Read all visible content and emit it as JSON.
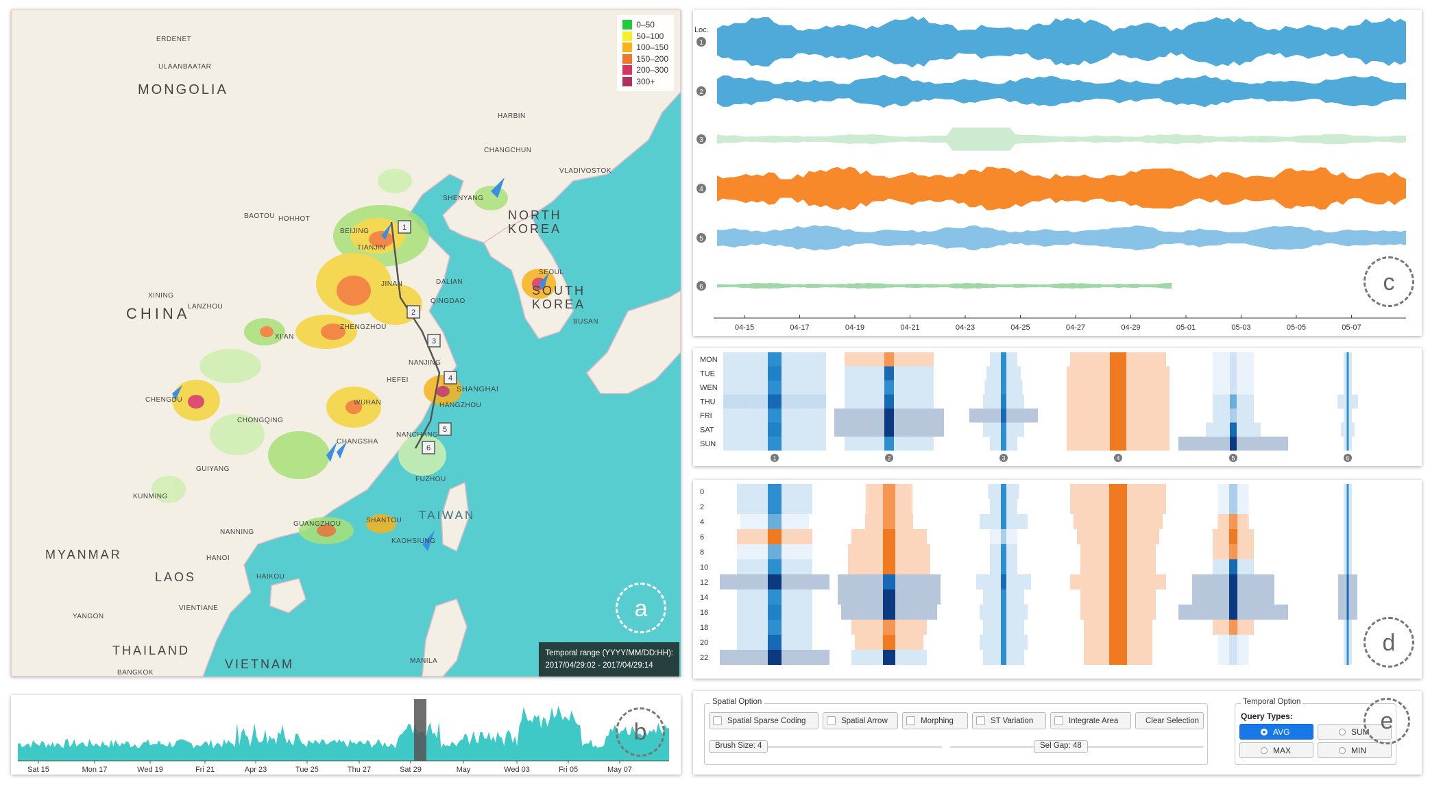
{
  "map": {
    "legend": [
      {
        "label": "0–50",
        "color": "#1fcc3a"
      },
      {
        "label": "50–100",
        "color": "#f5f029"
      },
      {
        "label": "100–150",
        "color": "#f7b21c"
      },
      {
        "label": "150–200",
        "color": "#f4762b"
      },
      {
        "label": "200–300",
        "color": "#d9345c"
      },
      {
        "label": "300+",
        "color": "#b03060"
      }
    ],
    "countries": [
      "MONGOLIA",
      "CHINA",
      "NORTH KOREA",
      "SOUTH KOREA",
      "MYANMAR",
      "LAOS",
      "THAILAND",
      "VIETNAM",
      "TAIWAN"
    ],
    "cities": [
      "ULAANBAATAR",
      "ERDENET",
      "BEIJING",
      "TIANJIN",
      "SHANGHAI",
      "HANGZHOU",
      "WUHAN",
      "CHENGDU",
      "CHONGQING",
      "XI'AN",
      "ZHENGZHOU",
      "NANCHANG",
      "CHANGSHA",
      "GUANGZHOU",
      "SHANTOU",
      "KUNMING",
      "NANNING",
      "FUZHOU",
      "SEOUL",
      "BUSAN",
      "SHENYANG",
      "DALIAN",
      "HARBIN",
      "CHANGCHUN",
      "BAOTOU",
      "HOHHOT",
      "LANZHOU",
      "XINING",
      "GUIYANG",
      "HAIKOU",
      "HANOI",
      "VIENTIANE",
      "YANGON",
      "BANGKOK",
      "MANILA",
      "KAOHSIUNG",
      "VLADIVOSTOK",
      "DALIAN",
      "QINGDAO",
      "NANJING",
      "HEFEI",
      "JINAN"
    ],
    "route_markers": [
      "1",
      "2",
      "3",
      "4",
      "5",
      "6"
    ],
    "temporal_range_title": "Temporal range (YYYY/MM/DD:HH):",
    "temporal_range_value": "2017/04/29:02 - 2017/04/29:14",
    "panel_label": "a"
  },
  "timeline": {
    "ticks": [
      "Sat 15",
      "Mon 17",
      "Wed 19",
      "Fri 21",
      "Apr 23",
      "Tue 25",
      "Thu 27",
      "Sat 29",
      "May",
      "Wed 03",
      "Fri 05",
      "May 07"
    ],
    "panel_label": "b"
  },
  "streams": {
    "loc_label": "Loc.",
    "locations": [
      "1",
      "2",
      "3",
      "4",
      "5",
      "6"
    ],
    "colors": [
      "#4fa9d9",
      "#4fa9d9",
      "#cdebd0",
      "#f7892b",
      "#88c2e6",
      "#9fd8a6"
    ],
    "dates": [
      "04-15",
      "04-17",
      "04-19",
      "04-21",
      "04-23",
      "04-25",
      "04-27",
      "04-29",
      "05-01",
      "05-03",
      "05-05",
      "05-07"
    ],
    "panel_label": "c"
  },
  "weekly": {
    "days": [
      "MON",
      "TUE",
      "WEN",
      "THU",
      "FRI",
      "SAT",
      "SUN"
    ],
    "locations": [
      "1",
      "2",
      "3",
      "4",
      "5",
      "6"
    ]
  },
  "hourly": {
    "hours": [
      "0",
      "2",
      "4",
      "6",
      "8",
      "10",
      "12",
      "14",
      "16",
      "18",
      "20",
      "22"
    ],
    "panel_label": "d"
  },
  "spatial_option": {
    "title": "Spatial Option",
    "buttons": [
      "Spatial Sparse Coding",
      "Spatial Arrow",
      "Morphing",
      "ST Variation",
      "Integrate Area",
      "Clear Selection"
    ],
    "brush_size": "Brush Size: 4",
    "sel_gap": "Sel Gap: 48"
  },
  "temporal_option": {
    "title": "Temporal Option",
    "query_types_label": "Query Types:",
    "options": [
      "AVG",
      "SUM",
      "MAX",
      "MIN"
    ],
    "selected": "AVG",
    "panel_label": "e"
  }
}
